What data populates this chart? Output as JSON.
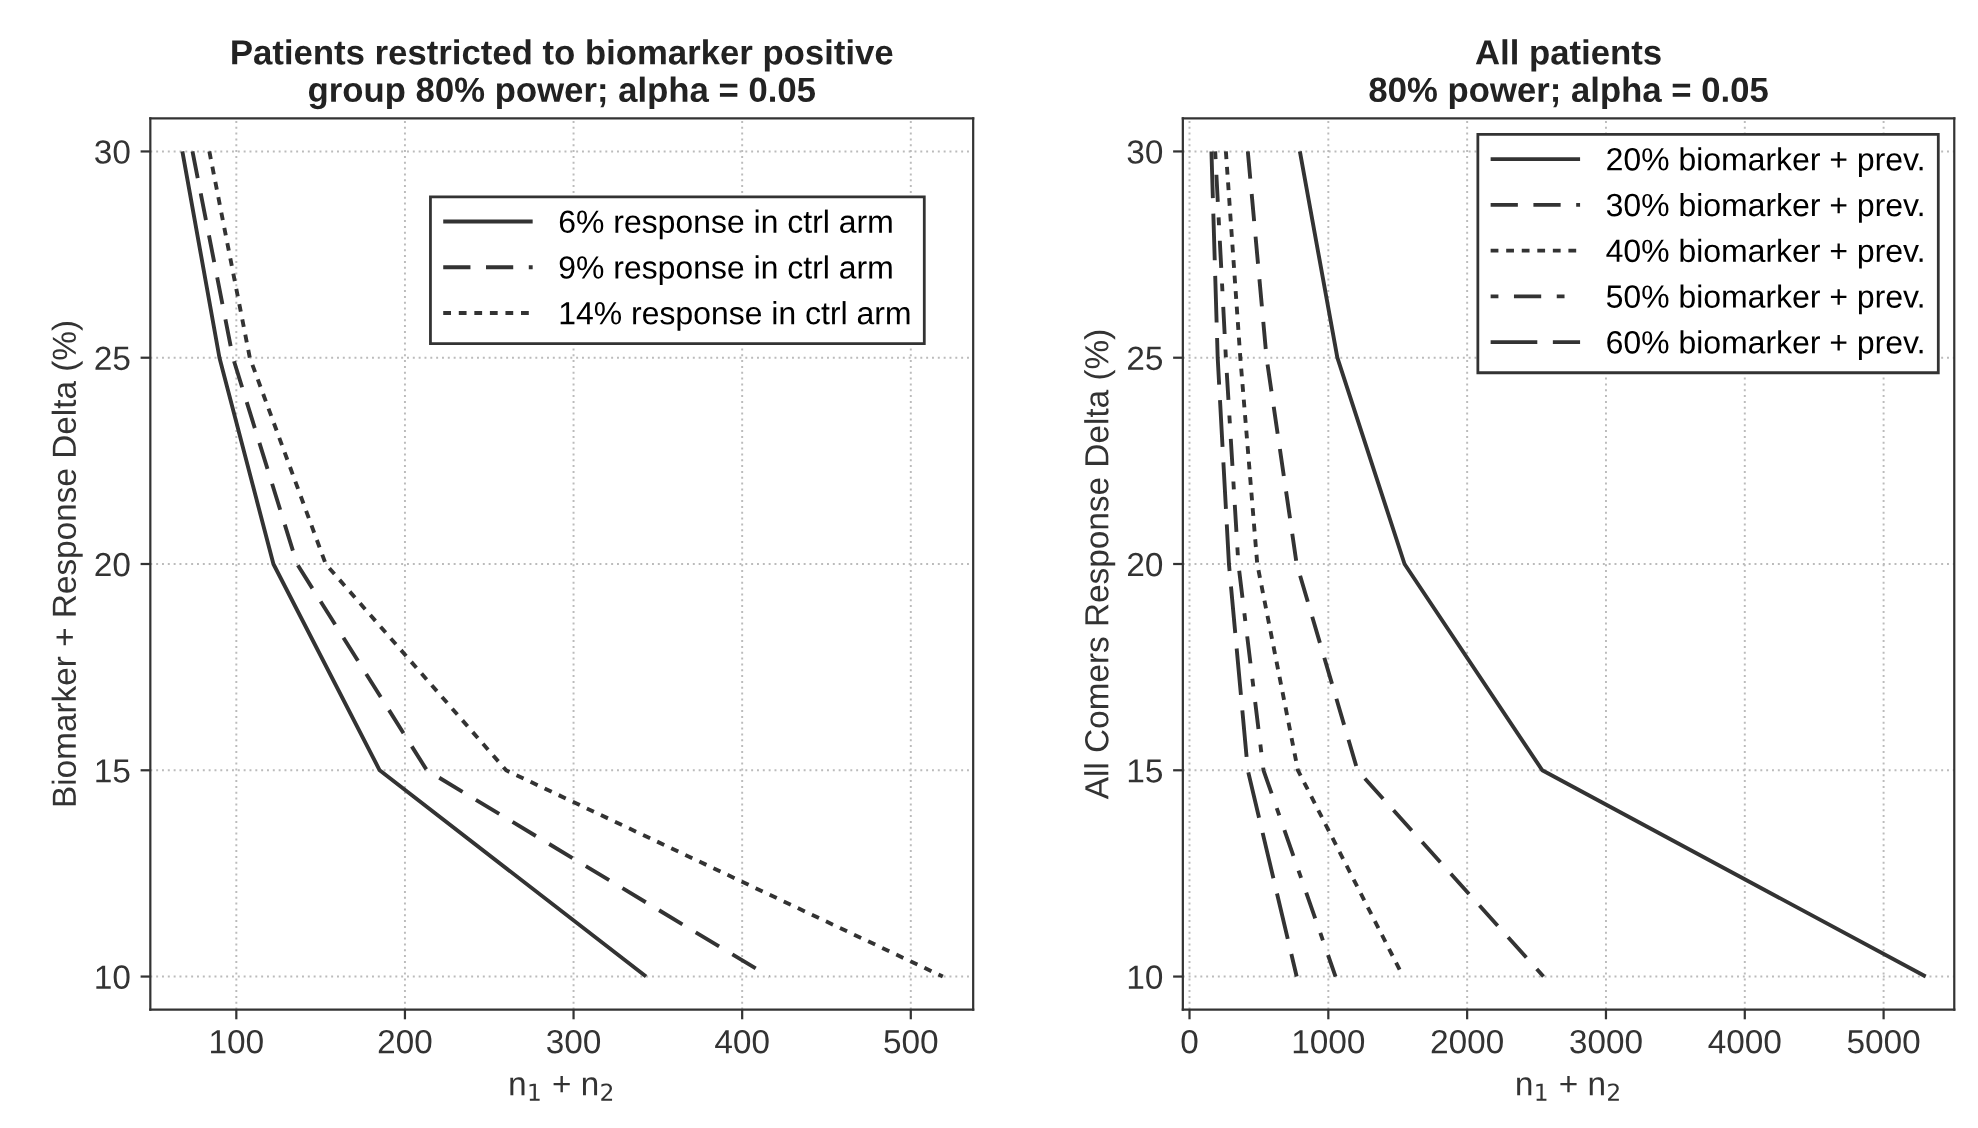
{
  "chart_data": [
    {
      "type": "line",
      "title": "Patients restricted to biomarker positive\ngroup 80% power; alpha = 0.05",
      "xlabel": "n$_{1}$ + n$_{2}$",
      "ylabel": "Biomarker + Response Delta (%)",
      "xlim": [
        49,
        537
      ],
      "xticks": [
        100,
        200,
        300,
        400,
        500
      ],
      "ylim": [
        9.2,
        30.8
      ],
      "yticks": [
        10,
        15,
        20,
        25,
        30
      ],
      "grid": true,
      "legend": "top right",
      "series": [
        {
          "name": "6% response in ctrl arm",
          "color": "#333333",
          "line_style": "solid",
          "x": [
            68,
            90,
            122,
            185,
            343
          ],
          "values": [
            30,
            25,
            20,
            15,
            10
          ]
        },
        {
          "name": "9% response in ctrl arm",
          "color": "#333333",
          "line_style": "dashed",
          "x": [
            74,
            98,
            136,
            213,
            416
          ],
          "values": [
            30,
            25,
            20,
            15,
            10
          ]
        },
        {
          "name": "14% response in ctrl arm",
          "color": "#333333",
          "line_style": "dotted",
          "x": [
            84,
            108,
            153,
            260,
            519
          ],
          "values": [
            30,
            25,
            20,
            15,
            10
          ]
        }
      ]
    },
    {
      "type": "line",
      "title": "All patients\n80% power; alpha = 0.05",
      "xlabel": "n$_{1}$ + n$_{2}$",
      "ylabel": "All Comers Response Delta (%)",
      "xlim": [
        -48,
        5509
      ],
      "xticks": [
        0,
        1000,
        2000,
        3000,
        4000,
        5000
      ],
      "ylim": [
        9.2,
        30.8
      ],
      "yticks": [
        10,
        15,
        20,
        25,
        30
      ],
      "grid": true,
      "legend": "top right",
      "series": [
        {
          "name": "20% biomarker + prev.",
          "color": "#333333",
          "line_style": "solid",
          "x": [
            795,
            1065,
            1549,
            2541,
            5303
          ],
          "values": [
            30,
            25,
            20,
            15,
            10
          ]
        },
        {
          "name": "30% biomarker + prev.",
          "color": "#333333",
          "line_style": "dashed",
          "x": [
            420,
            555,
            772,
            1210,
            2550
          ],
          "values": [
            30,
            25,
            20,
            15,
            10
          ]
        },
        {
          "name": "40% biomarker + prev.",
          "color": "#333333",
          "line_style": "dotted",
          "x": [
            262,
            366,
            488,
            781,
            1539
          ],
          "values": [
            30,
            25,
            20,
            15,
            10
          ]
        },
        {
          "name": "50% biomarker + prev.",
          "color": "#333333",
          "line_style": "dotdash",
          "x": [
            185,
            262,
            352,
            533,
            1052
          ],
          "values": [
            30,
            25,
            20,
            15,
            10
          ]
        },
        {
          "name": "60% biomarker + prev.",
          "color": "#333333",
          "line_style": "longdash",
          "x": [
            158,
            203,
            284,
            420,
            772
          ],
          "values": [
            30,
            25,
            20,
            15,
            10
          ]
        }
      ]
    }
  ]
}
